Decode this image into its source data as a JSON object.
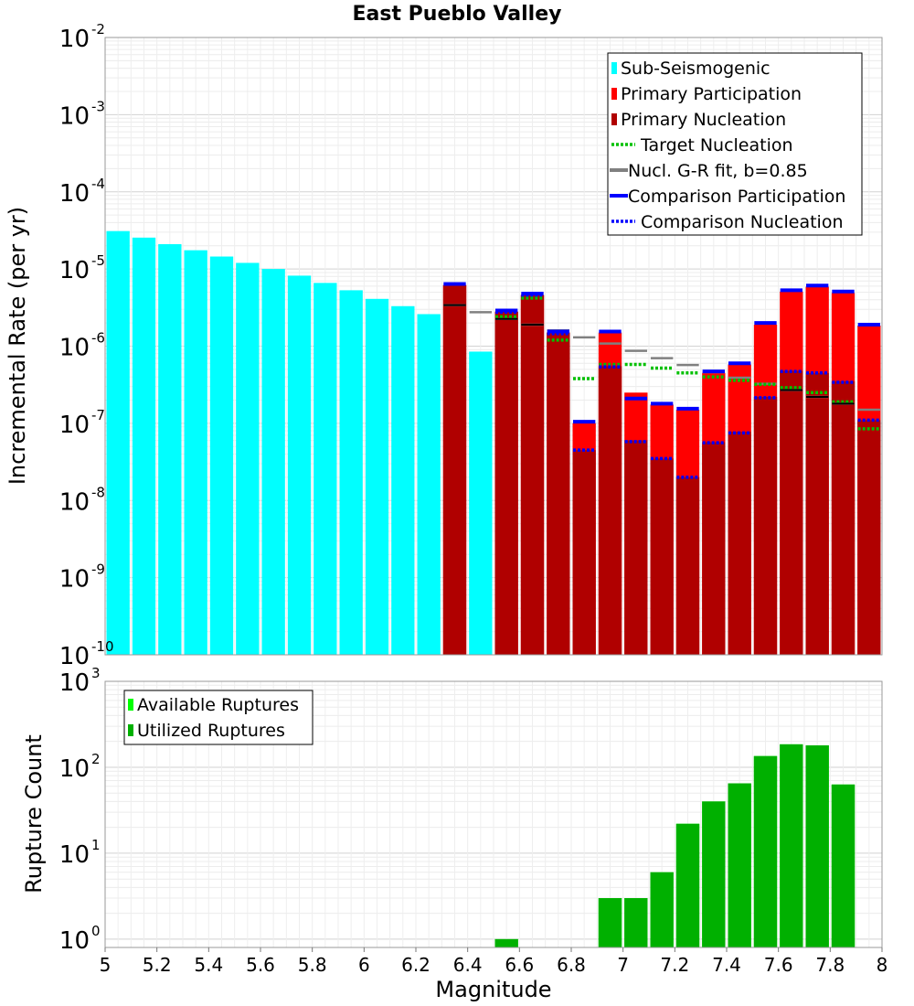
{
  "chart_data": [
    {
      "type": "bar",
      "title": "East Pueblo Valley",
      "xlabel": "",
      "ylabel": "Incremental Rate (per yr)",
      "yscale": "log",
      "ylim": [
        1e-10,
        0.01
      ],
      "xlim": [
        5,
        8
      ],
      "bin_width": 0.1,
      "grid": true,
      "legend_position": "top-right",
      "colors": {
        "sub_seismogenic": "#00ffff",
        "primary_participation": "#ff0000",
        "primary_nucleation": "#b00000",
        "target_nucleation": "#00c000",
        "gr_fit": "#808080",
        "comparison_participation": "#0000ff",
        "comparison_nucleation": "#0000ff"
      },
      "legend": [
        "Sub-Seismogenic",
        "Primary Participation",
        "Primary Nucleation",
        "Target Nucleation",
        "Nucl. G-R fit, b=0.85",
        "Comparison Participation",
        "Comparison Nucleation"
      ],
      "series": [
        {
          "name": "Sub-Seismogenic",
          "style": "bar",
          "points": [
            [
              5.05,
              3.1e-05
            ],
            [
              5.15,
              2.55e-05
            ],
            [
              5.25,
              2.1e-05
            ],
            [
              5.35,
              1.75e-05
            ],
            [
              5.45,
              1.45e-05
            ],
            [
              5.55,
              1.2e-05
            ],
            [
              5.65,
              1e-05
            ],
            [
              5.75,
              8.2e-06
            ],
            [
              5.85,
              6.6e-06
            ],
            [
              5.95,
              5.3e-06
            ],
            [
              6.05,
              4.1e-06
            ],
            [
              6.15,
              3.3e-06
            ],
            [
              6.25,
              2.6e-06
            ],
            [
              6.45,
              8.5e-07
            ]
          ]
        },
        {
          "name": "Primary Participation",
          "style": "bar",
          "points": [
            [
              6.35,
              6.2e-06
            ],
            [
              6.55,
              2.8e-06
            ],
            [
              6.65,
              4.6e-06
            ],
            [
              6.75,
              1.5e-06
            ],
            [
              6.85,
              1e-07
            ],
            [
              6.95,
              1.5e-06
            ],
            [
              7.05,
              2.5e-07
            ],
            [
              7.15,
              1.75e-07
            ],
            [
              7.25,
              1.5e-07
            ],
            [
              7.35,
              4.5e-07
            ],
            [
              7.45,
              5.8e-07
            ],
            [
              7.55,
              1.9e-06
            ],
            [
              7.65,
              5.1e-06
            ],
            [
              7.75,
              5.9e-06
            ],
            [
              7.85,
              4.9e-06
            ],
            [
              7.95,
              1.85e-06
            ]
          ]
        },
        {
          "name": "Primary Nucleation",
          "style": "bar",
          "points": [
            [
              6.35,
              6.2e-06
            ],
            [
              6.55,
              2.8e-06
            ],
            [
              6.65,
              4.6e-06
            ],
            [
              6.75,
              1.5e-06
            ],
            [
              6.85,
              4.5e-08
            ],
            [
              6.95,
              5.5e-07
            ],
            [
              7.05,
              6e-08
            ],
            [
              7.15,
              3.5e-08
            ],
            [
              7.25,
              2e-08
            ],
            [
              7.35,
              5.7e-08
            ],
            [
              7.45,
              7.8e-08
            ],
            [
              7.55,
              2.2e-07
            ],
            [
              7.65,
              4.8e-07
            ],
            [
              7.75,
              4.5e-07
            ],
            [
              7.85,
              3.5e-07
            ],
            [
              7.95,
              1.1e-07
            ]
          ]
        },
        {
          "name": "Target Nucleation",
          "style": "dotted",
          "points": [
            [
              6.55,
              2.4e-06
            ],
            [
              6.65,
              4.2e-06
            ],
            [
              6.75,
              1.2e-06
            ],
            [
              6.85,
              3.8e-07
            ],
            [
              6.95,
              5.8e-07
            ],
            [
              7.05,
              5.8e-07
            ],
            [
              7.15,
              5.2e-07
            ],
            [
              7.25,
              4.5e-07
            ],
            [
              7.35,
              4e-07
            ],
            [
              7.45,
              3.6e-07
            ],
            [
              7.55,
              3.2e-07
            ],
            [
              7.65,
              2.9e-07
            ],
            [
              7.75,
              2.5e-07
            ],
            [
              7.85,
              1.9e-07
            ],
            [
              7.95,
              8.5e-08
            ]
          ]
        },
        {
          "name": "Nucl. G-R fit, b=0.85",
          "style": "dash",
          "points": [
            [
              6.35,
              3.4e-06
            ],
            [
              6.45,
              2.75e-06
            ],
            [
              6.55,
              2.25e-06
            ],
            [
              6.65,
              1.9e-06
            ],
            [
              6.75,
              1.6e-06
            ],
            [
              6.85,
              1.3e-06
            ],
            [
              6.95,
              1.08e-06
            ],
            [
              7.05,
              8.7e-07
            ],
            [
              7.15,
              7e-07
            ],
            [
              7.25,
              5.7e-07
            ],
            [
              7.35,
              4.6e-07
            ],
            [
              7.45,
              3.9e-07
            ],
            [
              7.55,
              3.25e-07
            ],
            [
              7.65,
              2.7e-07
            ],
            [
              7.75,
              2.2e-07
            ],
            [
              7.85,
              1.8e-07
            ],
            [
              7.95,
              1.5e-07
            ]
          ]
        },
        {
          "name": "Comparison Participation",
          "style": "solid",
          "points": [
            [
              6.35,
              6.4e-06
            ],
            [
              6.55,
              2.9e-06
            ],
            [
              6.65,
              4.8e-06
            ],
            [
              6.75,
              1.55e-06
            ],
            [
              6.85,
              1.05e-07
            ],
            [
              6.95,
              1.55e-06
            ],
            [
              7.05,
              2.1e-07
            ],
            [
              7.15,
              1.8e-07
            ],
            [
              7.25,
              1.55e-07
            ],
            [
              7.35,
              4.7e-07
            ],
            [
              7.45,
              6e-07
            ],
            [
              7.55,
              2e-06
            ],
            [
              7.65,
              5.3e-06
            ],
            [
              7.75,
              6.1e-06
            ],
            [
              7.85,
              5.1e-06
            ],
            [
              7.95,
              1.9e-06
            ]
          ]
        },
        {
          "name": "Comparison Nucleation",
          "style": "dotted",
          "points": [
            [
              6.55,
              2.75e-06
            ],
            [
              6.65,
              4.6e-06
            ],
            [
              6.75,
              1.45e-06
            ],
            [
              6.85,
              4.5e-08
            ],
            [
              6.95,
              5.4e-07
            ],
            [
              7.05,
              5.8e-08
            ],
            [
              7.15,
              3.5e-08
            ],
            [
              7.25,
              2e-08
            ],
            [
              7.35,
              5.6e-08
            ],
            [
              7.45,
              7.5e-08
            ],
            [
              7.55,
              2.15e-07
            ],
            [
              7.65,
              4.7e-07
            ],
            [
              7.75,
              4.5e-07
            ],
            [
              7.85,
              3.4e-07
            ],
            [
              7.95,
              1.1e-07
            ]
          ]
        }
      ]
    },
    {
      "type": "bar",
      "title": "",
      "xlabel": "Magnitude",
      "ylabel": "Rupture Count",
      "yscale": "log",
      "ylim": [
        0.8,
        1000
      ],
      "xlim": [
        5,
        8
      ],
      "bin_width": 0.1,
      "grid": true,
      "legend_position": "top-left",
      "colors": {
        "available": "#00ff00",
        "utilized": "#00b000"
      },
      "legend": [
        "Available Ruptures",
        "Utilized Ruptures"
      ],
      "series": [
        {
          "name": "Available Ruptures",
          "points": [
            [
              6.55,
              1
            ],
            [
              6.95,
              3
            ],
            [
              7.05,
              3
            ],
            [
              7.15,
              6
            ],
            [
              7.25,
              22
            ],
            [
              7.35,
              40
            ],
            [
              7.45,
              65
            ],
            [
              7.55,
              135
            ],
            [
              7.65,
              185
            ],
            [
              7.75,
              180
            ],
            [
              7.85,
              63
            ]
          ]
        },
        {
          "name": "Utilized Ruptures",
          "points": [
            [
              6.55,
              1
            ],
            [
              6.95,
              3
            ],
            [
              7.05,
              3
            ],
            [
              7.15,
              6
            ],
            [
              7.25,
              22
            ],
            [
              7.35,
              40
            ],
            [
              7.45,
              65
            ],
            [
              7.55,
              135
            ],
            [
              7.65,
              185
            ],
            [
              7.75,
              180
            ],
            [
              7.85,
              63
            ]
          ]
        }
      ],
      "xticks": [
        "5",
        "5.2",
        "5.4",
        "5.6",
        "5.8",
        "6",
        "6.2",
        "6.4",
        "6.6",
        "6.8",
        "7",
        "7.2",
        "7.4",
        "7.6",
        "7.8",
        "8"
      ]
    }
  ]
}
